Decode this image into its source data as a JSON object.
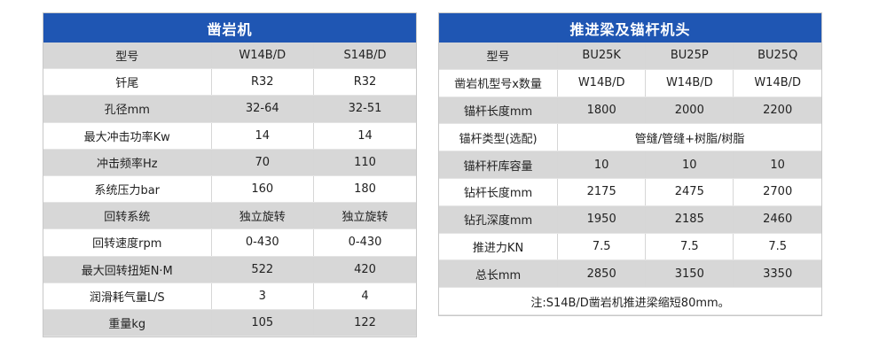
{
  "left": {
    "title": "凿岩机",
    "rows": [
      [
        "型号",
        "W14B/D",
        "S14B/D"
      ],
      [
        "钎尾",
        "R32",
        "R32"
      ],
      [
        "孔径mm",
        "32-64",
        "32-51"
      ],
      [
        "最大冲击功率Kw",
        "14",
        "14"
      ],
      [
        "冲击频率Hz",
        "70",
        "110"
      ],
      [
        "系统压力bar",
        "160",
        "180"
      ],
      [
        "回转系统",
        "独立旋转",
        "独立旋转"
      ],
      [
        "回转速度rpm",
        "0-430",
        "0-430"
      ],
      [
        "最大回转扭矩N·M",
        "522",
        "420"
      ],
      [
        "润滑耗气量L/S",
        "3",
        "4"
      ],
      [
        "重量kg",
        "105",
        "122"
      ]
    ]
  },
  "right": {
    "title": "推进梁及锚杆机头",
    "header": [
      "型号",
      "BU25K",
      "BU25P",
      "BU25Q"
    ],
    "drill_row": [
      "凿岩机型号x数量",
      "W14B/D",
      "W14B/D",
      "W14B/D"
    ],
    "bolt_length": [
      "锚杆长度mm",
      "1800",
      "2000",
      "2200"
    ],
    "bolt_type": [
      "锚杆类型(选配)",
      "管缝/管缝+树脂/树脂"
    ],
    "magazine": [
      "锚杆杆库容量",
      "10",
      "10",
      "10"
    ],
    "rod_length": [
      "钻杆长度mm",
      "2175",
      "2475",
      "2700"
    ],
    "hole_depth": [
      "钻孔深度mm",
      "1950",
      "2185",
      "2460"
    ],
    "thrust": [
      "推进力KN",
      "7.5",
      "7.5",
      "7.5"
    ],
    "total_length": [
      "总长mm",
      "2850",
      "3150",
      "3350"
    ],
    "note": "注:S14B/D凿岩机推进梁缩短80mm。"
  }
}
